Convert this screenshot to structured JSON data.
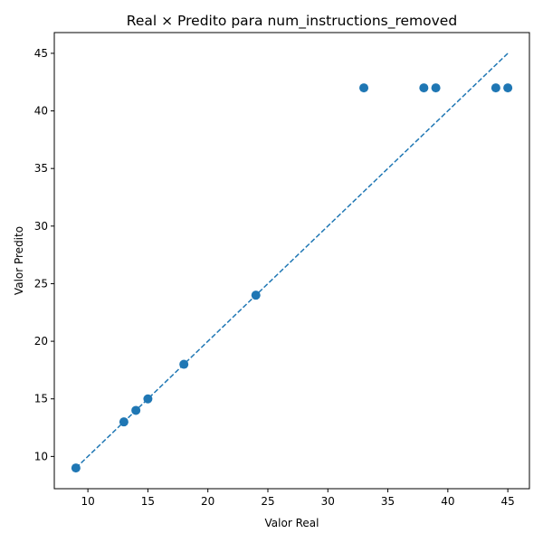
{
  "chart_data": {
    "type": "scatter",
    "title": "Real × Predito para num_instructions_removed",
    "xlabel": "Valor Real",
    "ylabel": "Valor Predito",
    "xlim": [
      7.2,
      46.8
    ],
    "ylim": [
      7.2,
      46.8
    ],
    "xticks": [
      10,
      15,
      20,
      25,
      30,
      35,
      40,
      45
    ],
    "yticks": [
      10,
      15,
      20,
      25,
      30,
      35,
      40,
      45
    ],
    "grid": false,
    "legend": "none",
    "series": [
      {
        "color": "#1f77b4",
        "points": [
          {
            "x": 9,
            "y": 9
          },
          {
            "x": 13,
            "y": 13
          },
          {
            "x": 14,
            "y": 14
          },
          {
            "x": 15,
            "y": 15
          },
          {
            "x": 18,
            "y": 18
          },
          {
            "x": 24,
            "y": 24
          },
          {
            "x": 33,
            "y": 42
          },
          {
            "x": 38,
            "y": 42
          },
          {
            "x": 39,
            "y": 42
          },
          {
            "x": 44,
            "y": 42
          },
          {
            "x": 45,
            "y": 42
          }
        ]
      }
    ],
    "reference_line": {
      "style": "dashed",
      "color": "#1f77b4",
      "from": {
        "x": 9,
        "y": 9
      },
      "to": {
        "x": 45,
        "y": 45
      }
    }
  }
}
